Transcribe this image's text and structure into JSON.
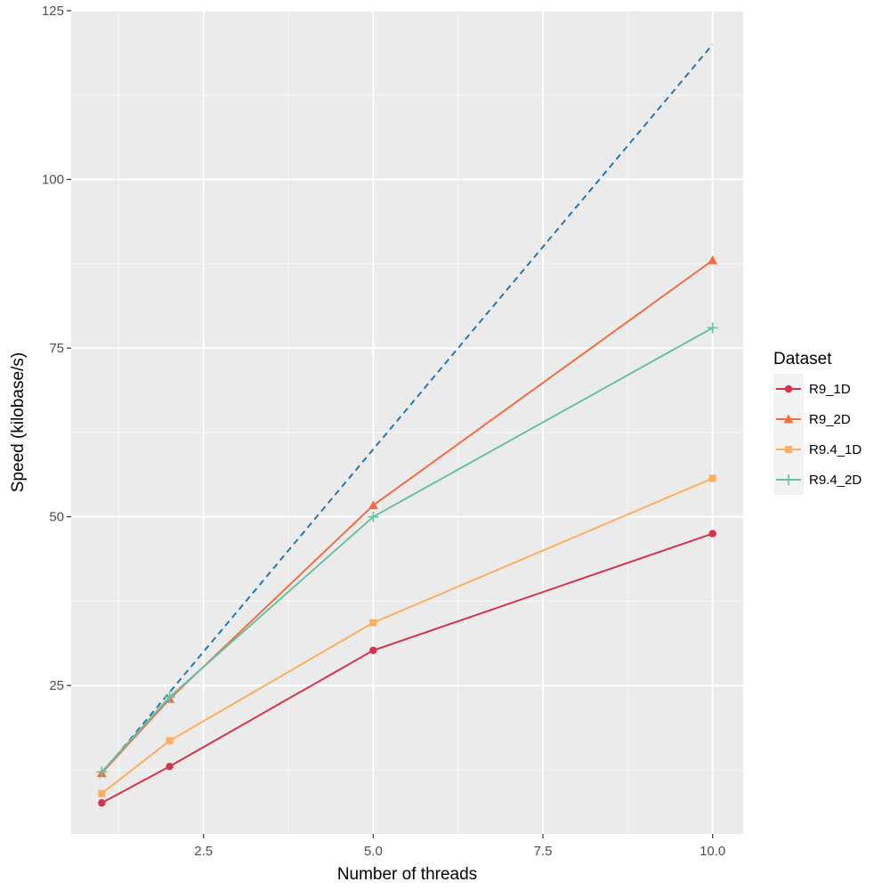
{
  "chart_data": {
    "type": "line",
    "xlabel": "Number of threads",
    "ylabel": "Speed (kilobase/s)",
    "xlim": [
      0.55,
      10.45
    ],
    "ylim": [
      3,
      125
    ],
    "x_ticks": [
      2.5,
      5.0,
      7.5,
      10.0
    ],
    "x_tick_labels": [
      "2.5",
      "5.0",
      "7.5",
      "10.0"
    ],
    "y_ticks": [
      25,
      50,
      75,
      100,
      125
    ],
    "y_tick_labels": [
      "25",
      "50",
      "75",
      "100",
      "125"
    ],
    "grid": true,
    "legend": {
      "title": "Dataset",
      "position": "right"
    },
    "reference_line": {
      "style": "dashed",
      "color": "#2277b0",
      "x": [
        1,
        2,
        5,
        10
      ],
      "y": [
        12,
        24,
        60,
        120
      ]
    },
    "series": [
      {
        "name": "R9_1D",
        "color": "#d6344a",
        "marker": "circle",
        "x": [
          1,
          2,
          5,
          10
        ],
        "y": [
          7.6,
          13.0,
          30.2,
          47.5
        ]
      },
      {
        "name": "R9_2D",
        "color": "#f46d43",
        "marker": "triangle",
        "x": [
          1,
          2,
          5,
          10
        ],
        "y": [
          12.0,
          23.0,
          51.7,
          88.0
        ]
      },
      {
        "name": "R9.4_1D",
        "color": "#fdae61",
        "marker": "square",
        "x": [
          1,
          2,
          5,
          10
        ],
        "y": [
          9.0,
          16.8,
          34.3,
          55.7
        ]
      },
      {
        "name": "R9.4_2D",
        "color": "#66c2a5",
        "marker": "plus",
        "x": [
          1,
          2,
          5,
          10
        ],
        "y": [
          12.2,
          23.3,
          50.0,
          78.0
        ]
      }
    ]
  }
}
